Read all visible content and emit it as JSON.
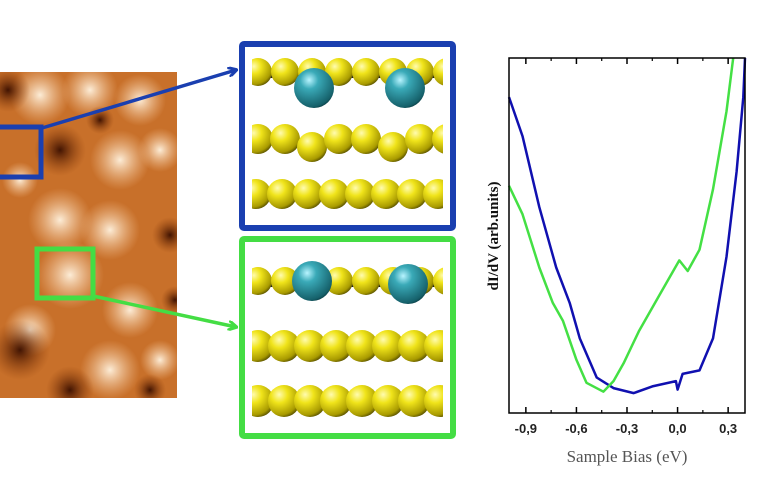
{
  "colors": {
    "blue_region": "#1a3fb0",
    "green_region": "#44dd44",
    "gold_atom": "#e8dc10",
    "teal_atom": "#2e9aa8"
  },
  "chart_data": {
    "type": "line",
    "title": "",
    "xlabel": "Sample Bias (eV)",
    "ylabel": "dI/dV (arb.units)",
    "xlim": [
      -1.0,
      0.4
    ],
    "ylim": [
      0,
      1
    ],
    "x_ticks": [
      -0.9,
      -0.6,
      -0.3,
      0.0,
      0.3
    ],
    "x_tick_labels": [
      "-0,9",
      "-0,6",
      "-0,3",
      "0,0",
      "0,3"
    ],
    "y_ticks_labeled": false,
    "grid": false,
    "legend": "none",
    "series": [
      {
        "color": "#1010b0",
        "x": [
          -1.0,
          -0.92,
          -0.82,
          -0.72,
          -0.64,
          -0.58,
          -0.48,
          -0.38,
          -0.26,
          -0.15,
          -0.01,
          0.0,
          0.03,
          0.13,
          0.21,
          0.29,
          0.35,
          0.39,
          0.4
        ],
        "y": [
          0.89,
          0.78,
          0.58,
          0.41,
          0.31,
          0.21,
          0.1,
          0.07,
          0.056,
          0.075,
          0.09,
          0.066,
          0.11,
          0.12,
          0.21,
          0.44,
          0.68,
          0.89,
          1.0
        ]
      },
      {
        "color": "#44e044",
        "x": [
          -1.0,
          -0.92,
          -0.82,
          -0.74,
          -0.68,
          -0.6,
          -0.54,
          -0.44,
          -0.38,
          -0.32,
          -0.23,
          -0.11,
          0.01,
          0.06,
          0.13,
          0.21,
          0.29,
          0.33
        ],
        "y": [
          0.64,
          0.56,
          0.41,
          0.31,
          0.26,
          0.15,
          0.085,
          0.06,
          0.09,
          0.14,
          0.23,
          0.33,
          0.43,
          0.4,
          0.46,
          0.63,
          0.85,
          1.0
        ]
      }
    ]
  }
}
